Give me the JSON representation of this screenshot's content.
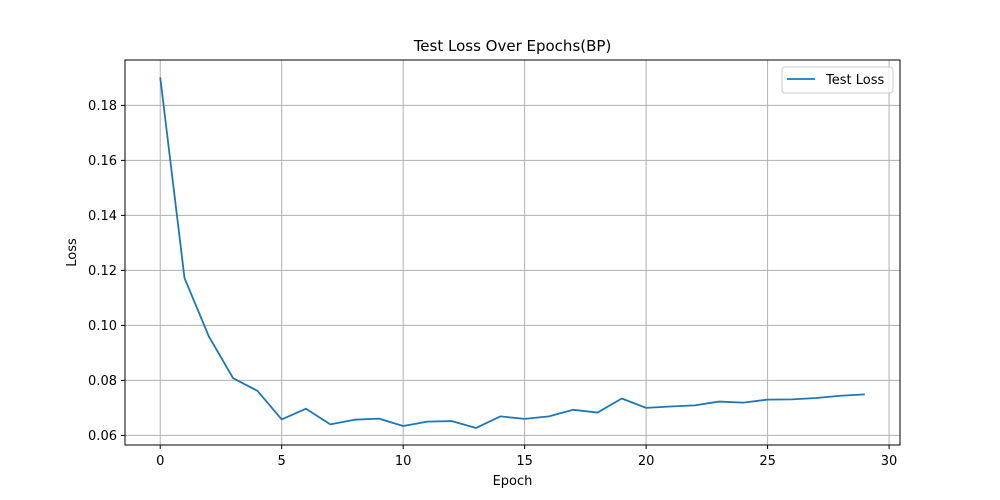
{
  "chart_data": {
    "type": "line",
    "title": "Test Loss Over Epochs(BP)",
    "xlabel": "Epoch",
    "ylabel": "Loss",
    "xlim": [
      -1.45,
      30.45
    ],
    "ylim": [
      0.0565,
      0.1965
    ],
    "xticks": [
      0,
      5,
      10,
      15,
      20,
      25,
      30
    ],
    "yticks": [
      0.06,
      0.08,
      0.1,
      0.12,
      0.14,
      0.16,
      0.18
    ],
    "ytick_labels": [
      "0.06",
      "0.08",
      "0.10",
      "0.12",
      "0.14",
      "0.16",
      "0.18"
    ],
    "grid": true,
    "legend_position": "top-right",
    "series": [
      {
        "name": "Test Loss",
        "color": "#1f77b4",
        "x": [
          0,
          1,
          2,
          3,
          4,
          5,
          6,
          7,
          8,
          9,
          10,
          11,
          12,
          13,
          14,
          15,
          16,
          17,
          18,
          19,
          20,
          21,
          22,
          23,
          24,
          25,
          26,
          27,
          28,
          29
        ],
        "y": [
          0.1902,
          0.1172,
          0.096,
          0.0808,
          0.0762,
          0.0658,
          0.0697,
          0.064,
          0.0657,
          0.0661,
          0.0634,
          0.065,
          0.0652,
          0.0627,
          0.0669,
          0.066,
          0.0669,
          0.0693,
          0.0683,
          0.0734,
          0.07,
          0.0705,
          0.0709,
          0.0723,
          0.0719,
          0.073,
          0.0731,
          0.0736,
          0.0744,
          0.0749
        ]
      }
    ]
  }
}
